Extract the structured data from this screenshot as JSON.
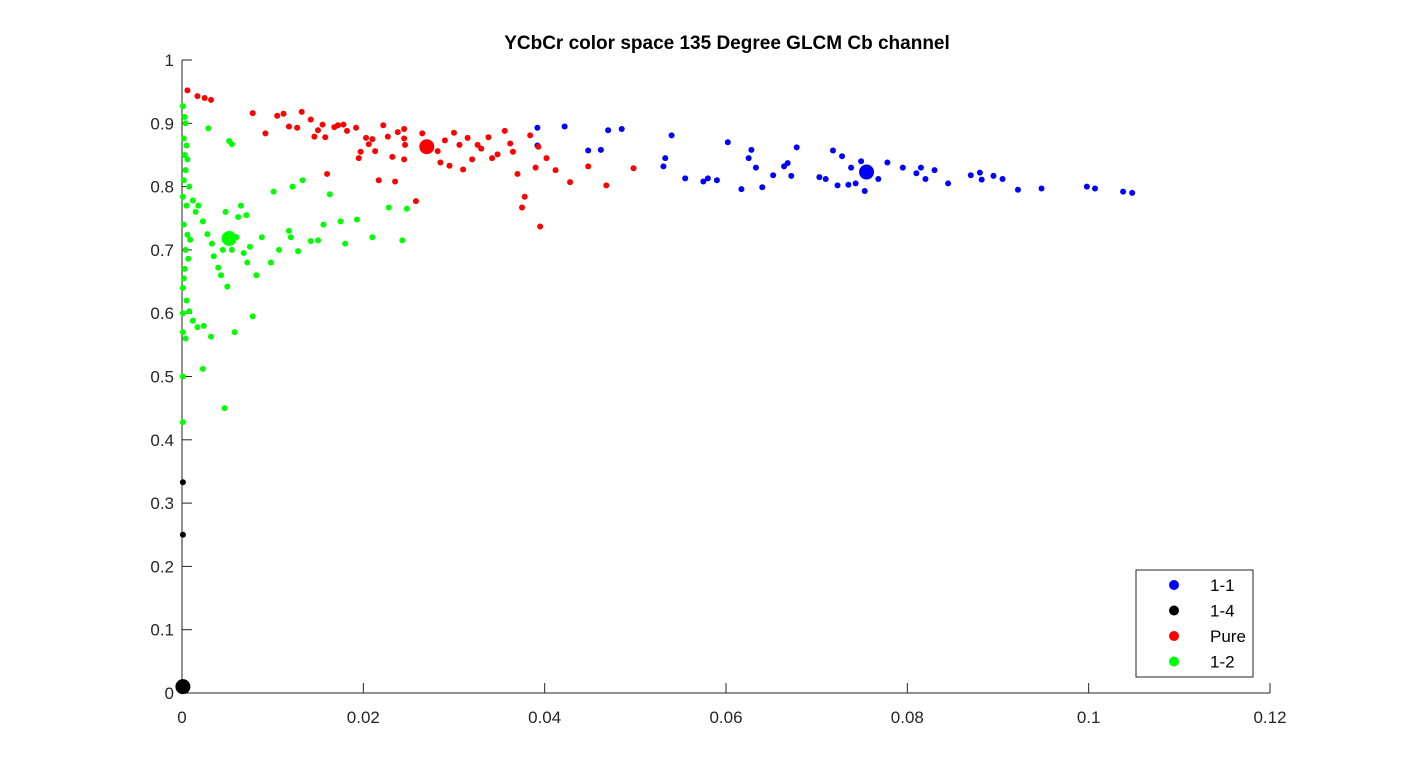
{
  "chart_data": {
    "type": "scatter",
    "title": "YCbCr color space 135 Degree GLCM Cb channel",
    "xlabel": "",
    "ylabel": "",
    "xlim": [
      0,
      0.12
    ],
    "ylim": [
      0,
      1
    ],
    "x_ticks": [
      0,
      0.02,
      0.04,
      0.06,
      0.08,
      0.1,
      0.12
    ],
    "y_ticks": [
      0,
      0.1,
      0.2,
      0.3,
      0.4,
      0.5,
      0.6,
      0.7,
      0.8,
      0.9,
      1
    ],
    "x_tick_labels": [
      "0",
      "0.02",
      "0.04",
      "0.06",
      "0.08",
      "0.1",
      "0.12"
    ],
    "y_tick_labels": [
      "0",
      "0.1",
      "0.2",
      "0.3",
      "0.4",
      "0.5",
      "0.6",
      "0.7",
      "0.8",
      "0.9",
      "1"
    ],
    "grid": false,
    "legend_position": "bottom-right",
    "series": [
      {
        "name": "1-1",
        "color": "#0000ff",
        "centroid": [
          0.0755,
          0.823
        ],
        "points": [
          [
            0.0392,
            0.893
          ],
          [
            0.0422,
            0.895
          ],
          [
            0.0392,
            0.865
          ],
          [
            0.0448,
            0.857
          ],
          [
            0.0462,
            0.858
          ],
          [
            0.047,
            0.889
          ],
          [
            0.0485,
            0.891
          ],
          [
            0.054,
            0.881
          ],
          [
            0.0533,
            0.845
          ],
          [
            0.0531,
            0.832
          ],
          [
            0.0555,
            0.813
          ],
          [
            0.0575,
            0.808
          ],
          [
            0.058,
            0.813
          ],
          [
            0.059,
            0.81
          ],
          [
            0.0602,
            0.87
          ],
          [
            0.0617,
            0.796
          ],
          [
            0.0628,
            0.858
          ],
          [
            0.0625,
            0.845
          ],
          [
            0.0633,
            0.83
          ],
          [
            0.064,
            0.799
          ],
          [
            0.0652,
            0.818
          ],
          [
            0.0664,
            0.832
          ],
          [
            0.0668,
            0.837
          ],
          [
            0.0672,
            0.817
          ],
          [
            0.0678,
            0.862
          ],
          [
            0.0703,
            0.815
          ],
          [
            0.071,
            0.812
          ],
          [
            0.0718,
            0.857
          ],
          [
            0.0723,
            0.802
          ],
          [
            0.0728,
            0.848
          ],
          [
            0.0735,
            0.803
          ],
          [
            0.0738,
            0.83
          ],
          [
            0.0743,
            0.805
          ],
          [
            0.0749,
            0.84
          ],
          [
            0.0753,
            0.793
          ],
          [
            0.0768,
            0.812
          ],
          [
            0.0778,
            0.838
          ],
          [
            0.0795,
            0.83
          ],
          [
            0.081,
            0.821
          ],
          [
            0.0815,
            0.83
          ],
          [
            0.082,
            0.812
          ],
          [
            0.083,
            0.826
          ],
          [
            0.0845,
            0.805
          ],
          [
            0.087,
            0.818
          ],
          [
            0.088,
            0.822
          ],
          [
            0.0882,
            0.811
          ],
          [
            0.0895,
            0.817
          ],
          [
            0.0905,
            0.812
          ],
          [
            0.0922,
            0.795
          ],
          [
            0.0948,
            0.797
          ],
          [
            0.0998,
            0.8
          ],
          [
            0.1007,
            0.797
          ],
          [
            0.1038,
            0.792
          ],
          [
            0.1048,
            0.79
          ]
        ]
      },
      {
        "name": "1-4",
        "color": "#000000",
        "centroid": [
          0.0001,
          0.01
        ],
        "points": [
          [
            0.0001,
            0.333
          ],
          [
            0.0001,
            0.25
          ],
          [
            0.0001,
            0.01
          ]
        ]
      },
      {
        "name": "Pure",
        "color": "#ff0000",
        "centroid": [
          0.027,
          0.863
        ],
        "points": [
          [
            0.0006,
            0.952
          ],
          [
            0.0017,
            0.943
          ],
          [
            0.0025,
            0.94
          ],
          [
            0.0032,
            0.937
          ],
          [
            0.0078,
            0.916
          ],
          [
            0.0092,
            0.884
          ],
          [
            0.0105,
            0.912
          ],
          [
            0.0112,
            0.915
          ],
          [
            0.0118,
            0.895
          ],
          [
            0.0127,
            0.893
          ],
          [
            0.0132,
            0.918
          ],
          [
            0.0142,
            0.906
          ],
          [
            0.0146,
            0.879
          ],
          [
            0.015,
            0.889
          ],
          [
            0.0155,
            0.898
          ],
          [
            0.0158,
            0.878
          ],
          [
            0.016,
            0.82
          ],
          [
            0.0168,
            0.894
          ],
          [
            0.0172,
            0.897
          ],
          [
            0.0178,
            0.898
          ],
          [
            0.0182,
            0.888
          ],
          [
            0.0192,
            0.893
          ],
          [
            0.0195,
            0.845
          ],
          [
            0.0197,
            0.855
          ],
          [
            0.0203,
            0.877
          ],
          [
            0.0206,
            0.867
          ],
          [
            0.021,
            0.875
          ],
          [
            0.0213,
            0.856
          ],
          [
            0.0217,
            0.81
          ],
          [
            0.0222,
            0.897
          ],
          [
            0.0227,
            0.879
          ],
          [
            0.0232,
            0.847
          ],
          [
            0.0235,
            0.808
          ],
          [
            0.0238,
            0.886
          ],
          [
            0.0245,
            0.891
          ],
          [
            0.0245,
            0.876
          ],
          [
            0.0246,
            0.866
          ],
          [
            0.0245,
            0.843
          ],
          [
            0.0258,
            0.777
          ],
          [
            0.0265,
            0.884
          ],
          [
            0.0282,
            0.856
          ],
          [
            0.0285,
            0.838
          ],
          [
            0.029,
            0.873
          ],
          [
            0.0295,
            0.833
          ],
          [
            0.03,
            0.885
          ],
          [
            0.0306,
            0.866
          ],
          [
            0.031,
            0.827
          ],
          [
            0.0315,
            0.877
          ],
          [
            0.032,
            0.843
          ],
          [
            0.0326,
            0.866
          ],
          [
            0.033,
            0.86
          ],
          [
            0.0338,
            0.878
          ],
          [
            0.0342,
            0.845
          ],
          [
            0.0348,
            0.851
          ],
          [
            0.0356,
            0.888
          ],
          [
            0.0362,
            0.868
          ],
          [
            0.0365,
            0.855
          ],
          [
            0.037,
            0.82
          ],
          [
            0.0375,
            0.767
          ],
          [
            0.0378,
            0.784
          ],
          [
            0.0384,
            0.881
          ],
          [
            0.039,
            0.83
          ],
          [
            0.0393,
            0.863
          ],
          [
            0.0395,
            0.737
          ],
          [
            0.0402,
            0.845
          ],
          [
            0.0412,
            0.826
          ],
          [
            0.0428,
            0.807
          ],
          [
            0.0448,
            0.832
          ],
          [
            0.0468,
            0.802
          ],
          [
            0.0498,
            0.829
          ]
        ]
      },
      {
        "name": "1-2",
        "color": "#00ff00",
        "centroid": [
          0.0052,
          0.718
        ],
        "points": [
          [
            0.0001,
            0.927
          ],
          [
            0.0003,
            0.91
          ],
          [
            0.0004,
            0.9
          ],
          [
            0.0002,
            0.876
          ],
          [
            0.0005,
            0.865
          ],
          [
            0.0003,
            0.85
          ],
          [
            0.0006,
            0.843
          ],
          [
            0.0004,
            0.826
          ],
          [
            0.0002,
            0.81
          ],
          [
            0.0008,
            0.8
          ],
          [
            0.0001,
            0.784
          ],
          [
            0.0005,
            0.77
          ],
          [
            0.0012,
            0.778
          ],
          [
            0.0015,
            0.76
          ],
          [
            0.0002,
            0.74
          ],
          [
            0.0006,
            0.724
          ],
          [
            0.0009,
            0.716
          ],
          [
            0.0004,
            0.7
          ],
          [
            0.0007,
            0.686
          ],
          [
            0.0003,
            0.67
          ],
          [
            0.0002,
            0.655
          ],
          [
            0.0001,
            0.64
          ],
          [
            0.0005,
            0.62
          ],
          [
            0.0001,
            0.6
          ],
          [
            0.0008,
            0.603
          ],
          [
            0.0012,
            0.588
          ],
          [
            0.0017,
            0.578
          ],
          [
            0.0024,
            0.58
          ],
          [
            0.0032,
            0.563
          ],
          [
            0.0001,
            0.57
          ],
          [
            0.0004,
            0.56
          ],
          [
            0.0023,
            0.512
          ],
          [
            0.0001,
            0.5
          ],
          [
            0.0047,
            0.45
          ],
          [
            0.0001,
            0.428
          ],
          [
            0.0029,
            0.892
          ],
          [
            0.0052,
            0.872
          ],
          [
            0.0055,
            0.867
          ],
          [
            0.0018,
            0.77
          ],
          [
            0.0023,
            0.745
          ],
          [
            0.0028,
            0.725
          ],
          [
            0.0033,
            0.71
          ],
          [
            0.0035,
            0.69
          ],
          [
            0.004,
            0.672
          ],
          [
            0.0043,
            0.66
          ],
          [
            0.0045,
            0.7
          ],
          [
            0.0048,
            0.76
          ],
          [
            0.005,
            0.642
          ],
          [
            0.0055,
            0.7
          ],
          [
            0.006,
            0.72
          ],
          [
            0.0062,
            0.752
          ],
          [
            0.0065,
            0.77
          ],
          [
            0.0068,
            0.695
          ],
          [
            0.0071,
            0.755
          ],
          [
            0.0072,
            0.68
          ],
          [
            0.0075,
            0.705
          ],
          [
            0.0078,
            0.595
          ],
          [
            0.0082,
            0.66
          ],
          [
            0.0058,
            0.57
          ],
          [
            0.0088,
            0.72
          ],
          [
            0.0098,
            0.68
          ],
          [
            0.0101,
            0.792
          ],
          [
            0.0107,
            0.7
          ],
          [
            0.0118,
            0.73
          ],
          [
            0.012,
            0.72
          ],
          [
            0.0122,
            0.8
          ],
          [
            0.0128,
            0.698
          ],
          [
            0.0133,
            0.81
          ],
          [
            0.0142,
            0.714
          ],
          [
            0.015,
            0.715
          ],
          [
            0.0156,
            0.74
          ],
          [
            0.0163,
            0.788
          ],
          [
            0.0175,
            0.745
          ],
          [
            0.018,
            0.71
          ],
          [
            0.0193,
            0.748
          ],
          [
            0.021,
            0.72
          ],
          [
            0.0228,
            0.767
          ],
          [
            0.0243,
            0.715
          ],
          [
            0.0248,
            0.765
          ]
        ]
      }
    ]
  }
}
